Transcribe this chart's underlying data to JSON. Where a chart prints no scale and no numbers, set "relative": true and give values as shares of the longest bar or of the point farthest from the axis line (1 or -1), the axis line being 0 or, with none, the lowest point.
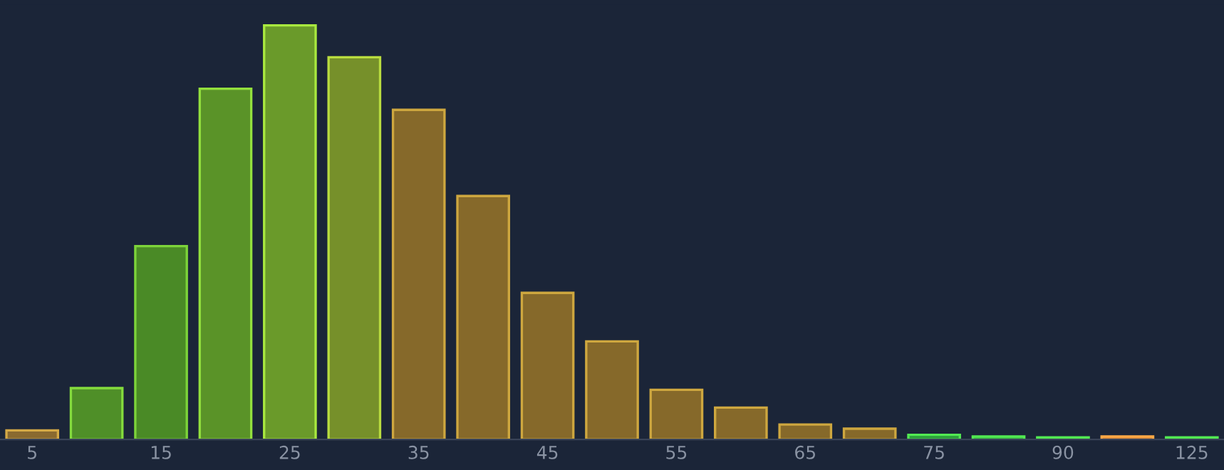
{
  "chart_data": {
    "type": "bar",
    "relative": true,
    "categories": [
      "5",
      null,
      "15",
      null,
      "25",
      null,
      "35",
      null,
      "45",
      null,
      "55",
      null,
      "65",
      null,
      "75",
      null,
      "90",
      null,
      "125"
    ],
    "values": [
      0.022,
      0.124,
      0.467,
      0.847,
      1,
      0.923,
      0.796,
      0.588,
      0.354,
      0.237,
      0.12,
      0.077,
      0.036,
      0.026,
      0.011,
      0.007,
      0.005,
      0.007,
      0.005
    ],
    "colors": [
      "#8a6a30",
      "#4f8f28",
      "#4a8a26",
      "#5a9328",
      "#6a9a2a",
      "#76902a",
      "#86692a",
      "#86692a",
      "#86692a",
      "#86692a",
      "#86692a",
      "#86692a",
      "#86692a",
      "#86692a",
      "#2a9a3a",
      "#2a9a3a",
      "#2a9a3a",
      "#b06a30",
      "#2a9a3a"
    ],
    "grid": false,
    "legend": false
  }
}
